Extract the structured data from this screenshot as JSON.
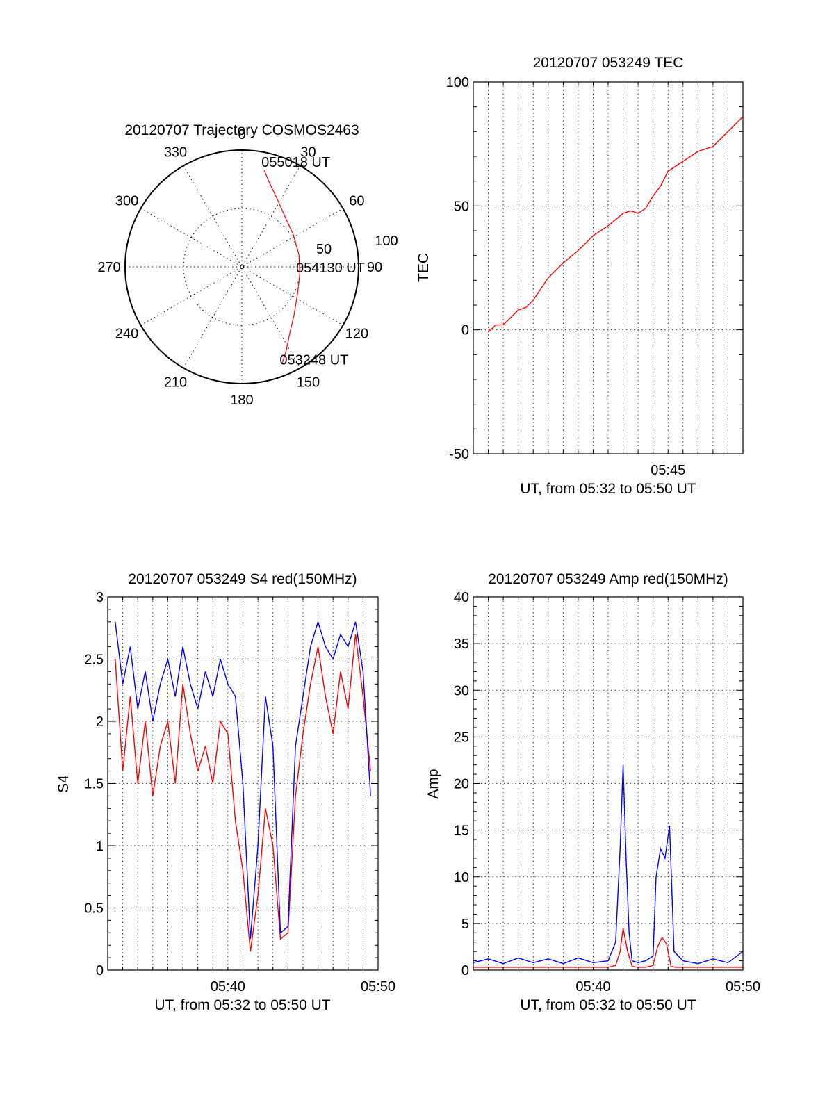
{
  "chart_data": [
    {
      "type": "scatter",
      "panel": "polar-trajectory",
      "title": "20120707 Trajectory COSMOS2463",
      "azimuth_labels": [
        "0",
        "30",
        "60",
        "90",
        "120",
        "150",
        "180",
        "210",
        "240",
        "270",
        "300",
        "330"
      ],
      "radial_labels": [
        "50",
        "100"
      ],
      "rmax": 100,
      "series": [
        {
          "color": "#ff0000",
          "points": [
            {
              "az": 13,
              "r": 85
            },
            {
              "az": 18,
              "r": 76
            },
            {
              "az": 27,
              "r": 66
            },
            {
              "az": 40,
              "r": 57
            },
            {
              "az": 58,
              "r": 52
            },
            {
              "az": 78,
              "r": 50
            },
            {
              "az": 97,
              "r": 50
            },
            {
              "az": 116,
              "r": 53
            },
            {
              "az": 133,
              "r": 61
            },
            {
              "az": 145,
              "r": 71
            },
            {
              "az": 152,
              "r": 81
            },
            {
              "az": 157,
              "r": 89
            }
          ]
        }
      ],
      "annotations": [
        {
          "text": "055018 UT",
          "az": 13,
          "r": 85
        },
        {
          "text": "054130 UT",
          "az": 90,
          "r": 50
        },
        {
          "text": "053248 UT",
          "az": 157,
          "r": 89
        }
      ]
    },
    {
      "type": "line",
      "panel": "tec",
      "title": "20120707 053249 TEC",
      "xlabel": "UT, from 05:32 to 05:50 UT",
      "ylabel": "TEC",
      "ylim": [
        -50,
        100
      ],
      "y_ticks": [
        "100",
        "50",
        "0",
        "-50"
      ],
      "xlim": [
        0,
        18
      ],
      "x_ticks": [
        {
          "value": 13,
          "label": "05:45"
        }
      ],
      "grid": true,
      "series": [
        {
          "color": "#ff0000",
          "x": [
            1,
            1.5,
            2,
            3,
            3.5,
            4,
            5,
            6,
            7,
            8,
            9,
            10,
            10.5,
            11,
            11.5,
            12,
            12.5,
            13,
            14,
            15,
            16,
            17,
            18
          ],
          "y": [
            -1,
            2,
            2,
            8,
            9,
            12,
            21,
            27,
            32,
            38,
            42,
            47,
            48,
            47,
            49,
            54,
            58,
            64,
            68,
            72,
            74,
            80,
            86
          ]
        }
      ]
    },
    {
      "type": "line",
      "panel": "s4",
      "title": "20120707 053249 S4 red(150MHz)",
      "xlabel": "UT, from 05:32 to 05:50 UT",
      "ylabel": "S4",
      "ylim": [
        0,
        3
      ],
      "y_ticks": [
        "3",
        "2.5",
        "2",
        "1.5",
        "1",
        "0.5",
        "0"
      ],
      "xlim": [
        0,
        18
      ],
      "x_ticks": [
        {
          "value": 8,
          "label": "05:40"
        },
        {
          "value": 18,
          "label": "05:50"
        }
      ],
      "grid": true,
      "series": [
        {
          "color": "#ff0000",
          "x": [
            0.5,
            1,
            1.5,
            2,
            2.5,
            3,
            3.5,
            4,
            4.5,
            5,
            5.5,
            6,
            6.5,
            7,
            7.5,
            8,
            8.5,
            9,
            9.5,
            10,
            10.5,
            11,
            11.5,
            12,
            12.5,
            13,
            13.5,
            14,
            14.5,
            15,
            15.5,
            16,
            16.5,
            17,
            17.5
          ],
          "y": [
            2.5,
            1.6,
            2.2,
            1.5,
            2.0,
            1.4,
            1.8,
            2.0,
            1.5,
            2.3,
            1.9,
            1.6,
            1.8,
            1.5,
            2.0,
            1.9,
            1.2,
            0.8,
            0.15,
            0.6,
            1.3,
            1.0,
            0.25,
            0.3,
            1.4,
            1.9,
            2.3,
            2.6,
            2.2,
            1.9,
            2.4,
            2.1,
            2.7,
            2.2,
            1.6
          ]
        },
        {
          "color": "#0000ff",
          "x": [
            0.5,
            1,
            1.5,
            2,
            2.5,
            3,
            3.5,
            4,
            4.5,
            5,
            5.5,
            6,
            6.5,
            7,
            7.5,
            8,
            8.5,
            9,
            9.5,
            10,
            10.5,
            11,
            11.5,
            12,
            12.5,
            13,
            13.5,
            14,
            14.5,
            15,
            15.5,
            16,
            16.5,
            17,
            17.5
          ],
          "y": [
            2.8,
            2.3,
            2.6,
            2.1,
            2.4,
            2.0,
            2.3,
            2.5,
            2.2,
            2.6,
            2.3,
            2.1,
            2.4,
            2.2,
            2.5,
            2.3,
            2.2,
            1.5,
            0.25,
            1.0,
            2.2,
            1.8,
            0.3,
            0.35,
            1.8,
            2.2,
            2.6,
            2.8,
            2.6,
            2.5,
            2.7,
            2.6,
            2.8,
            2.4,
            1.4
          ]
        }
      ]
    },
    {
      "type": "line",
      "panel": "amp",
      "title": "20120707 053249 Amp red(150MHz)",
      "xlabel": "UT, from 05:32 to 05:50 UT",
      "ylabel": "Amp",
      "ylim": [
        0,
        40
      ],
      "y_ticks": [
        "40",
        "35",
        "30",
        "25",
        "20",
        "15",
        "10",
        "5",
        "0"
      ],
      "xlim": [
        0,
        18
      ],
      "x_ticks": [
        {
          "value": 8,
          "label": "05:40"
        },
        {
          "value": 18,
          "label": "05:50"
        }
      ],
      "grid": true,
      "series": [
        {
          "color": "#ff0000",
          "x": [
            0,
            2,
            4,
            6,
            8,
            9,
            9.5,
            9.8,
            10,
            10.3,
            10.6,
            11,
            11.5,
            12,
            12.3,
            12.6,
            12.9,
            13.2,
            13.5,
            14,
            16,
            18
          ],
          "y": [
            0.3,
            0.3,
            0.3,
            0.3,
            0.3,
            0.3,
            0.5,
            2.0,
            4.5,
            2.0,
            0.4,
            0.3,
            0.3,
            0.5,
            2.5,
            3.5,
            2.8,
            0.4,
            0.3,
            0.3,
            0.3,
            0.3
          ]
        },
        {
          "color": "#0000ff",
          "x": [
            0,
            1,
            2,
            3,
            4,
            5,
            6,
            7,
            8,
            9,
            9.5,
            9.8,
            10,
            10.2,
            10.4,
            10.6,
            11,
            11.5,
            12,
            12.2,
            12.5,
            12.8,
            13.1,
            13.4,
            14,
            15,
            16,
            17,
            18
          ],
          "y": [
            0.8,
            1.2,
            0.7,
            1.3,
            0.8,
            1.2,
            0.7,
            1.3,
            0.8,
            1.0,
            3.0,
            13.0,
            22.0,
            12.0,
            4.0,
            1.0,
            0.8,
            1.0,
            1.5,
            10.0,
            13.0,
            12.0,
            15.5,
            2.0,
            1.0,
            0.7,
            1.2,
            0.8,
            2.0
          ]
        }
      ]
    }
  ]
}
